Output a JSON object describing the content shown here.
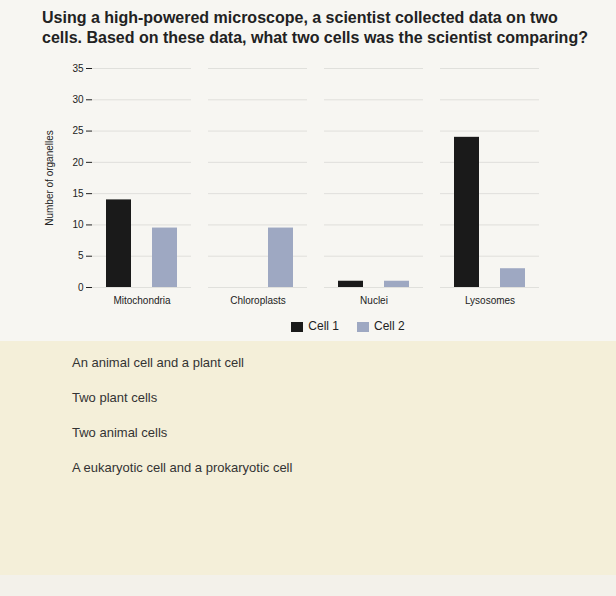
{
  "question": "Using a high-powered microscope, a scientist collected data on two cells. Based on these data, what two cells was the scientist comparing?",
  "options": [
    "An animal cell and a plant cell",
    "Two plant cells",
    "Two animal cells",
    "A eukaryotic cell and a prokaryotic cell"
  ],
  "chart_data": {
    "type": "bar",
    "y_label": "Number of organelles",
    "categories": [
      "Mitochondria",
      "Chloroplasts",
      "Nuclei",
      "Lysosomes"
    ],
    "series": [
      {
        "name": "Cell 1",
        "color": "#1a1a1a",
        "values": [
          14,
          0,
          1,
          24
        ]
      },
      {
        "name": "Cell 2",
        "color": "#9ea8c2",
        "values": [
          9.5,
          9.5,
          1,
          3
        ]
      }
    ],
    "ylim": [
      0,
      35
    ],
    "yticks": [
      0,
      5,
      10,
      15,
      20,
      25,
      30,
      35
    ],
    "grid": true,
    "legend": "bottom"
  }
}
